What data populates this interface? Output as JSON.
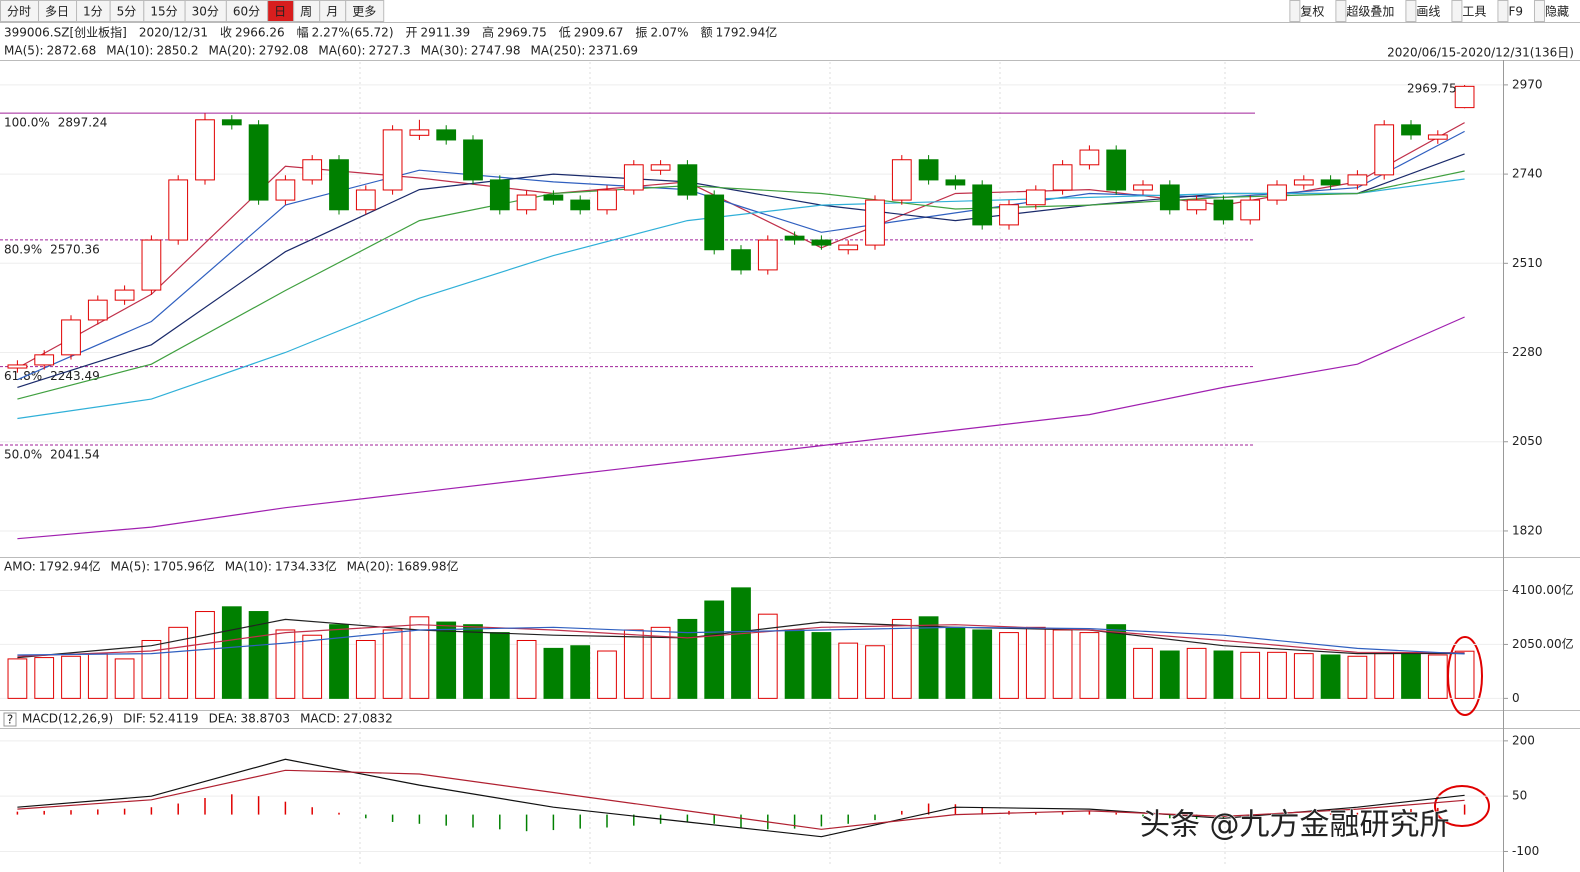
{
  "toolbar": {
    "left": [
      "分时",
      "多日",
      "1分",
      "5分",
      "15分",
      "30分",
      "60分",
      "日",
      "周",
      "月",
      "更多"
    ],
    "active": 7,
    "right": [
      "复权",
      "超级叠加",
      "画线",
      "工具",
      "F9",
      "隐藏"
    ]
  },
  "info": {
    "code": "399006.SZ[创业板指]",
    "date": "2020/12/31",
    "items": [
      {
        "label": "收",
        "value": "2966.26"
      },
      {
        "label": "幅",
        "value": "2.27%(65.72)"
      },
      {
        "label": "开",
        "value": "2911.39"
      },
      {
        "label": "高",
        "value": "2969.75"
      },
      {
        "label": "低",
        "value": "2909.67"
      },
      {
        "label": "振",
        "value": "2.07%"
      },
      {
        "label": "额",
        "value": "1792.94亿"
      }
    ]
  },
  "range": "2020/06/15-2020/12/31(136日)",
  "help": "?",
  "watermark": "头条 @九方金融研究所",
  "chart_data": [
    {
      "type": "candlestick",
      "up_color": "#e00000",
      "down_color": "#008000",
      "open": [
        2240,
        2248,
        2274,
        2364,
        2415,
        2441,
        2570,
        2725,
        2880,
        2867,
        2673,
        2725,
        2777,
        2648,
        2699,
        2840,
        2854,
        2828,
        2725,
        2648,
        2686,
        2673,
        2648,
        2699,
        2750,
        2764,
        2686,
        2545,
        2493,
        2580,
        2570,
        2545,
        2557,
        2673,
        2777,
        2725,
        2712,
        2609,
        2661,
        2699,
        2764,
        2802,
        2699,
        2712,
        2648,
        2673,
        2622,
        2673,
        2712,
        2725,
        2712,
        2738,
        2867,
        2830,
        2911.39
      ],
      "high": [
        2260,
        2286,
        2376,
        2427,
        2453,
        2582,
        2737,
        2897,
        2892,
        2879,
        2737,
        2789,
        2789,
        2711,
        2866,
        2880,
        2866,
        2840,
        2737,
        2698,
        2698,
        2685,
        2711,
        2776,
        2776,
        2776,
        2698,
        2557,
        2582,
        2592,
        2582,
        2569,
        2685,
        2789,
        2789,
        2737,
        2724,
        2673,
        2711,
        2776,
        2814,
        2814,
        2724,
        2724,
        2685,
        2685,
        2685,
        2724,
        2737,
        2737,
        2750,
        2879,
        2879,
        2853,
        2969.75
      ],
      "low": [
        2228,
        2236,
        2262,
        2352,
        2403,
        2429,
        2558,
        2713,
        2855,
        2661,
        2661,
        2713,
        2636,
        2636,
        2687,
        2828,
        2816,
        2713,
        2636,
        2636,
        2661,
        2636,
        2636,
        2687,
        2738,
        2674,
        2533,
        2481,
        2481,
        2558,
        2545,
        2533,
        2545,
        2661,
        2713,
        2700,
        2597,
        2597,
        2649,
        2687,
        2752,
        2687,
        2687,
        2636,
        2636,
        2610,
        2610,
        2661,
        2700,
        2700,
        2700,
        2726,
        2829,
        2818,
        2909.67
      ],
      "close": [
        2248,
        2274,
        2364,
        2415,
        2441,
        2570,
        2725,
        2880,
        2867,
        2673,
        2725,
        2777,
        2648,
        2699,
        2854,
        2854,
        2828,
        2725,
        2648,
        2686,
        2673,
        2648,
        2699,
        2764,
        2764,
        2686,
        2545,
        2493,
        2570,
        2570,
        2557,
        2557,
        2673,
        2777,
        2725,
        2712,
        2609,
        2661,
        2699,
        2764,
        2802,
        2699,
        2712,
        2648,
        2673,
        2622,
        2673,
        2712,
        2725,
        2712,
        2738,
        2867,
        2841,
        2841,
        2966.26
      ],
      "ylim": [
        1758,
        3029
      ],
      "yticks": [
        1820,
        2050,
        2280,
        2510,
        2740,
        2970
      ],
      "series": [
        {
          "name": "MA(5):",
          "color": "#c0304a",
          "x": [
            0,
            5,
            10,
            15,
            20,
            25,
            30,
            35,
            40,
            45,
            50,
            54
          ],
          "values": [
            2240,
            2430,
            2760,
            2730,
            2690,
            2720,
            2550,
            2690,
            2700,
            2660,
            2720,
            2872.68
          ]
        },
        {
          "name": "MA(10):",
          "color": "#3060c0",
          "x": [
            0,
            5,
            10,
            15,
            20,
            25,
            30,
            35,
            40,
            45,
            50,
            54
          ],
          "values": [
            2210,
            2360,
            2660,
            2750,
            2720,
            2700,
            2590,
            2640,
            2690,
            2680,
            2705,
            2850.2
          ]
        },
        {
          "name": "MA(20):",
          "color": "#1a2a6a",
          "x": [
            0,
            5,
            10,
            15,
            20,
            25,
            30,
            35,
            40,
            45,
            50,
            54
          ],
          "values": [
            2190,
            2300,
            2540,
            2700,
            2740,
            2720,
            2660,
            2620,
            2660,
            2690,
            2690,
            2792.08
          ]
        },
        {
          "name": "MA(60):",
          "color": "#30b0d8",
          "x": [
            0,
            5,
            10,
            15,
            20,
            25,
            30,
            35,
            40,
            45,
            50,
            54
          ],
          "values": [
            2110,
            2160,
            2280,
            2420,
            2530,
            2620,
            2660,
            2670,
            2680,
            2690,
            2690,
            2727.3
          ]
        },
        {
          "name": "MA(30):",
          "color": "#40a040",
          "x": [
            0,
            5,
            10,
            15,
            20,
            25,
            30,
            35,
            40,
            45,
            50,
            54
          ],
          "values": [
            2160,
            2250,
            2440,
            2620,
            2690,
            2710,
            2690,
            2650,
            2660,
            2680,
            2690,
            2747.98
          ]
        },
        {
          "name": "MA(250):",
          "color": "#a020b0",
          "x": [
            0,
            5,
            10,
            15,
            20,
            25,
            30,
            35,
            40,
            45,
            50,
            54
          ],
          "values": [
            1800,
            1830,
            1880,
            1920,
            1960,
            2000,
            2040,
            2080,
            2120,
            2190,
            2250,
            2371.69
          ]
        }
      ],
      "levels": [
        {
          "label": "100.0%",
          "value": 2897.24,
          "style": "solid"
        },
        {
          "label": "80.9%",
          "value": 2570.36,
          "style": "dashed"
        },
        {
          "label": "61.8%",
          "value": 2243.49,
          "style": "dashed"
        },
        {
          "label": "50.0%",
          "value": 2041.54,
          "style": "dashed"
        }
      ],
      "level_color": "#a0209a"
    },
    {
      "type": "bar",
      "legend_name": "AMO:",
      "legend_label": "1792.94亿",
      "values": [
        1500,
        1550,
        1600,
        1700,
        1500,
        2200,
        2700,
        3300,
        3480,
        3300,
        2600,
        2400,
        2800,
        2200,
        2600,
        3100,
        2900,
        2800,
        2500,
        2200,
        1900,
        2000,
        1800,
        2600,
        2700,
        3000,
        3700,
        4200,
        3200,
        2600,
        2500,
        2100,
        2000,
        3000,
        3100,
        2700,
        2600,
        2500,
        2700,
        2600,
        2500,
        2800,
        1900,
        1800,
        1900,
        1800,
        1750,
        1750,
        1700,
        1650,
        1600,
        1700,
        1700,
        1650,
        1792.94
      ],
      "ylim": [
        -366,
        4575
      ],
      "yticks": [
        {
          "value": 4100,
          "label": "4100.00亿"
        },
        {
          "value": 2050,
          "label": "2050.00亿"
        },
        0
      ],
      "series": [
        {
          "name": "MA(5):",
          "color": "#222222",
          "legend_label": "1705.96亿",
          "x": [
            0,
            5,
            10,
            15,
            20,
            25,
            30,
            35,
            40,
            45,
            50,
            54
          ],
          "values": [
            1550,
            2000,
            3000,
            2600,
            2400,
            2300,
            2900,
            2700,
            2600,
            2000,
            1700,
            1705.96
          ]
        },
        {
          "name": "MA(10):",
          "color": "#c0304a",
          "legend_label": "1734.33亿",
          "x": [
            0,
            5,
            10,
            15,
            20,
            25,
            30,
            35,
            40,
            45,
            50,
            54
          ],
          "values": [
            1600,
            1800,
            2500,
            2800,
            2600,
            2300,
            2700,
            2800,
            2600,
            2200,
            1750,
            1734.33
          ]
        },
        {
          "name": "MA(20):",
          "color": "#3060c0",
          "legend_label": "1689.98亿",
          "x": [
            0,
            5,
            10,
            15,
            20,
            25,
            30,
            35,
            40,
            45,
            50,
            54
          ],
          "values": [
            1650,
            1700,
            2100,
            2600,
            2700,
            2500,
            2600,
            2700,
            2650,
            2400,
            1900,
            1689.98
          ]
        }
      ]
    },
    {
      "type": "macd",
      "title": "MACD(12,26,9)",
      "value_name": "MACD:",
      "up_color": "#e00000",
      "down_color": "#008000",
      "values": [
        8,
        10,
        12,
        14,
        16,
        20,
        30,
        45,
        55,
        50,
        35,
        20,
        5,
        -10,
        -20,
        -25,
        -30,
        -35,
        -40,
        -45,
        -42,
        -38,
        -35,
        -30,
        -25,
        -20,
        -25,
        -35,
        -40,
        -38,
        -32,
        -25,
        -15,
        10,
        30,
        28,
        20,
        10,
        5,
        8,
        10,
        5,
        -5,
        -10,
        -12,
        -10,
        -8,
        -5,
        0,
        3,
        5,
        12,
        15,
        18,
        27.0832
      ],
      "ylim": [
        -134,
        224
      ],
      "yticks": [
        200,
        50,
        -100
      ],
      "series": [
        {
          "name": "DIF:",
          "color": "#111111",
          "x": [
            0,
            5,
            10,
            15,
            20,
            25,
            30,
            35,
            40,
            45,
            50,
            54
          ],
          "values": [
            20,
            50,
            150,
            80,
            20,
            -20,
            -60,
            20,
            15,
            -10,
            20,
            52.4119
          ]
        },
        {
          "name": "DEA:",
          "color": "#b02030",
          "x": [
            0,
            5,
            10,
            15,
            20,
            25,
            30,
            35,
            40,
            45,
            50,
            54
          ],
          "values": [
            15,
            40,
            120,
            110,
            60,
            10,
            -40,
            0,
            10,
            -5,
            15,
            38.8703
          ]
        }
      ]
    }
  ]
}
